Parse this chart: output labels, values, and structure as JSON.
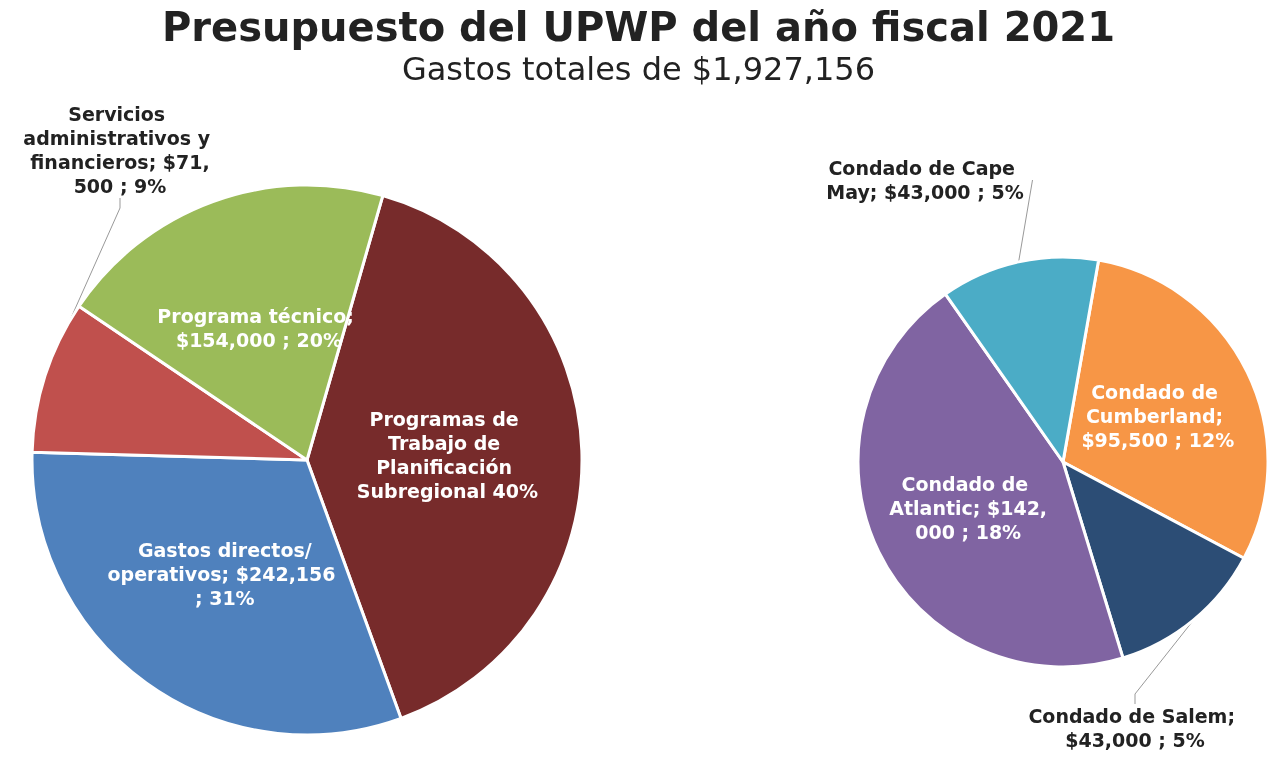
{
  "chart_data": [
    {
      "type": "pie",
      "title": "Presupuesto del UPWP del año fiscal 2021",
      "subtitle": "Gastos totales de $1,927,156",
      "categories": [
        "Programas de Trabajo de Planificación Subregional",
        "Gastos directos/operativos",
        "Servicios administrativos y financieros",
        "Programa técnico"
      ],
      "values": [
        40,
        31,
        9,
        20
      ],
      "value_labels": [
        "40%",
        "; $242,156 ; 31%",
        "; $71,500 ; 9%",
        "; $154,000 ; 20%"
      ],
      "colors": [
        "#772b2b",
        "#4f81bd",
        "#c0504d",
        "#9bbb59"
      ]
    },
    {
      "type": "pie",
      "categories": [
        "Condado de Cumberland",
        "Condado de Salem",
        "Condado de Atlantic",
        "Condado de Cape May"
      ],
      "values": [
        12,
        5,
        18,
        5
      ],
      "value_labels": [
        "; $95,500 ; 12%",
        "; $43,000 ; 5%",
        "; $142,000 ; 18%",
        "; $43,000 ; 5%"
      ],
      "colors": [
        "#f79646",
        "#2c4d75",
        "#8064a2",
        "#4bacc6"
      ]
    }
  ]
}
